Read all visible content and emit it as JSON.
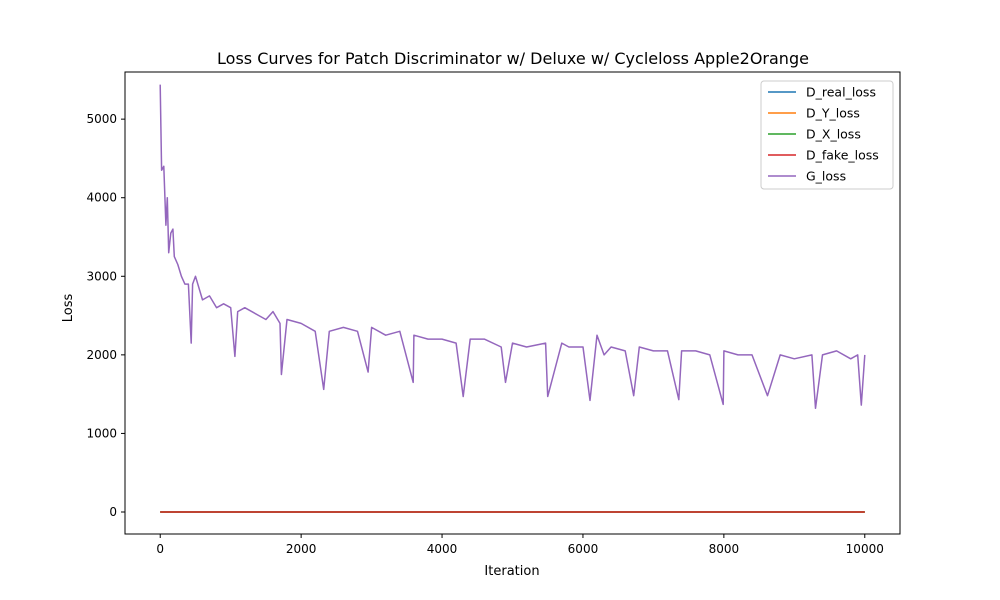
{
  "chart_data": {
    "type": "line",
    "title": "Loss Curves for Patch Discriminator w/ Deluxe w/ Cycleloss Apple2Orange",
    "xlabel": "Iteration",
    "ylabel": "Loss",
    "xlim": [
      -500,
      10500
    ],
    "ylim": [
      -280,
      5600
    ],
    "xticks": [
      0,
      2000,
      4000,
      6000,
      8000,
      10000
    ],
    "yticks": [
      0,
      1000,
      2000,
      3000,
      4000,
      5000
    ],
    "grid": false,
    "legend_position": "top-right",
    "series": [
      {
        "name": "D_real_loss",
        "color": "#1f77b4",
        "x": [
          0,
          10000
        ],
        "y": [
          0.2,
          0.2
        ]
      },
      {
        "name": "D_Y_loss",
        "color": "#ff7f0e",
        "x": [
          0,
          10000
        ],
        "y": [
          0.3,
          0.3
        ]
      },
      {
        "name": "D_X_loss",
        "color": "#2ca02c",
        "x": [
          0,
          10000
        ],
        "y": [
          0.3,
          0.3
        ]
      },
      {
        "name": "D_fake_loss",
        "color": "#d62728",
        "x": [
          0,
          10000
        ],
        "y": [
          0.2,
          0.2
        ]
      },
      {
        "name": "G_loss",
        "color": "#9467bd",
        "x": [
          0,
          20,
          50,
          80,
          100,
          120,
          150,
          180,
          200,
          250,
          300,
          350,
          400,
          440,
          460,
          500,
          600,
          700,
          800,
          900,
          1000,
          1060,
          1100,
          1200,
          1400,
          1500,
          1600,
          1700,
          1720,
          1800,
          2000,
          2200,
          2320,
          2400,
          2600,
          2800,
          2950,
          3000,
          3200,
          3400,
          3590,
          3600,
          3800,
          4000,
          4200,
          4300,
          4400,
          4600,
          4840,
          4900,
          5000,
          5200,
          5470,
          5500,
          5700,
          5800,
          6000,
          6100,
          6200,
          6300,
          6400,
          6600,
          6720,
          6800,
          7000,
          7200,
          7360,
          7400,
          7600,
          7800,
          7990,
          8000,
          8200,
          8400,
          8620,
          8800,
          9000,
          9250,
          9300,
          9400,
          9600,
          9800,
          9900,
          9950,
          10000
        ],
        "y": [
          5440,
          4350,
          4400,
          3650,
          4000,
          3300,
          3550,
          3600,
          3250,
          3150,
          3000,
          2900,
          2900,
          2150,
          2900,
          3000,
          2700,
          2750,
          2600,
          2650,
          2600,
          1980,
          2550,
          2600,
          2500,
          2450,
          2550,
          2400,
          1750,
          2450,
          2400,
          2300,
          1560,
          2300,
          2350,
          2300,
          1780,
          2350,
          2250,
          2300,
          1650,
          2250,
          2200,
          2200,
          2150,
          1470,
          2200,
          2200,
          2100,
          1650,
          2150,
          2100,
          2150,
          1470,
          2150,
          2100,
          2100,
          1420,
          2250,
          2000,
          2100,
          2050,
          1480,
          2100,
          2050,
          2050,
          1430,
          2050,
          2050,
          2000,
          1370,
          2050,
          2000,
          2000,
          1480,
          2000,
          1950,
          2000,
          1320,
          2000,
          2050,
          1950,
          2000,
          1360,
          2000
        ]
      }
    ]
  }
}
